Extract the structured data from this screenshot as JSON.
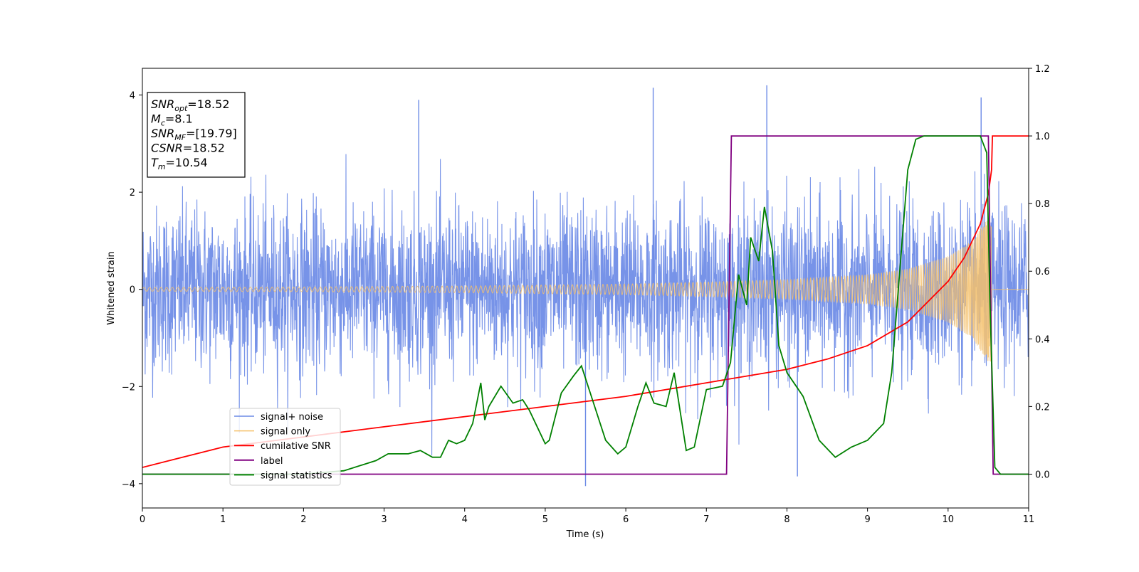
{
  "chart_data": {
    "type": "line",
    "xlabel": "Time (s)",
    "ylabel": "Whitened strain",
    "xlim": [
      0,
      11
    ],
    "ylim_left": [
      -4.5,
      4.55
    ],
    "ylim_right": [
      -0.1,
      1.2
    ],
    "x_ticks": [
      0,
      1,
      2,
      3,
      4,
      5,
      6,
      7,
      8,
      9,
      10,
      11
    ],
    "y_ticks_left": [
      -4,
      -2,
      0,
      2,
      4
    ],
    "y_ticks_right": [
      0.0,
      0.2,
      0.4,
      0.6,
      0.8,
      1.0,
      1.2
    ],
    "x_tick_labels": [
      "0",
      "1",
      "2",
      "3",
      "4",
      "5",
      "6",
      "7",
      "8",
      "9",
      "10",
      "11"
    ],
    "y_tick_labels_left": [
      "−4",
      "−2",
      "0",
      "2",
      "4"
    ],
    "y_tick_labels_right": [
      "0.0",
      "0.2",
      "0.4",
      "0.6",
      "0.8",
      "1.0",
      "1.2"
    ],
    "grid": false,
    "legend_position": "lower-left",
    "colors": {
      "signal_noise": "#6b8ae6",
      "signal_only": "#f5c16c",
      "cumulative_snr": "#ff0000",
      "label": "#800080",
      "signal_statistics": "#008000"
    },
    "series": [
      {
        "name": "signal+ noise",
        "axis": "left",
        "style": "noise band",
        "x_range": [
          0,
          11
        ],
        "approx_range": [
          -4.05,
          4.15
        ],
        "notable_peaks": [
          {
            "x": 3.43,
            "y": 3.9
          },
          {
            "x": 6.34,
            "y": 4.15
          },
          {
            "x": 7.75,
            "y": 4.2
          },
          {
            "x": 10.41,
            "y": 3.95
          },
          {
            "x": 5.5,
            "y": -4.05
          },
          {
            "x": 8.13,
            "y": -3.85
          }
        ]
      },
      {
        "name": "signal only",
        "axis": "left",
        "style": "chirp",
        "x_range": [
          0,
          10.54
        ],
        "amplitude": [
          [
            0,
            0.04
          ],
          [
            2,
            0.05
          ],
          [
            4,
            0.07
          ],
          [
            6,
            0.11
          ],
          [
            7,
            0.15
          ],
          [
            8,
            0.2
          ],
          [
            9,
            0.3
          ],
          [
            9.5,
            0.42
          ],
          [
            10,
            0.68
          ],
          [
            10.3,
            1.0
          ],
          [
            10.5,
            1.5
          ]
        ]
      },
      {
        "name": "cumilative SNR",
        "axis": "right",
        "x": [
          0,
          1,
          2,
          3,
          4,
          5,
          6,
          7,
          7.5,
          8,
          8.5,
          9,
          9.5,
          10,
          10.2,
          10.4,
          10.5,
          10.54,
          10.55,
          11
        ],
        "y": [
          0.02,
          0.08,
          0.11,
          0.14,
          0.17,
          0.2,
          0.23,
          0.27,
          0.29,
          0.31,
          0.34,
          0.38,
          0.45,
          0.57,
          0.64,
          0.74,
          0.83,
          0.9,
          1.0,
          1.0
        ]
      },
      {
        "name": "label",
        "axis": "right",
        "x": [
          0,
          7.25,
          7.31,
          10.5,
          10.56,
          11
        ],
        "y": [
          0,
          0,
          1.0,
          1.0,
          0,
          0
        ]
      },
      {
        "name": "signal statistics",
        "axis": "right",
        "x": [
          0,
          1,
          2,
          2.5,
          2.9,
          3.05,
          3.3,
          3.45,
          3.6,
          3.7,
          3.8,
          3.9,
          4.0,
          4.1,
          4.2,
          4.25,
          4.3,
          4.45,
          4.6,
          4.72,
          4.8,
          5.0,
          5.05,
          5.2,
          5.35,
          5.45,
          5.6,
          5.75,
          5.9,
          6.0,
          6.15,
          6.25,
          6.35,
          6.5,
          6.6,
          6.75,
          6.85,
          7.0,
          7.2,
          7.3,
          7.4,
          7.5,
          7.55,
          7.65,
          7.72,
          7.82,
          7.9,
          8.0,
          8.2,
          8.4,
          8.6,
          8.8,
          9.0,
          9.2,
          9.3,
          9.4,
          9.5,
          9.6,
          9.7,
          9.85,
          10.2,
          10.4,
          10.48,
          10.52,
          10.58,
          10.65,
          11
        ],
        "y": [
          0,
          0,
          0,
          0.01,
          0.04,
          0.06,
          0.06,
          0.07,
          0.05,
          0.05,
          0.1,
          0.09,
          0.1,
          0.15,
          0.27,
          0.16,
          0.2,
          0.26,
          0.21,
          0.22,
          0.19,
          0.09,
          0.1,
          0.24,
          0.29,
          0.32,
          0.21,
          0.1,
          0.06,
          0.08,
          0.2,
          0.27,
          0.21,
          0.2,
          0.3,
          0.07,
          0.08,
          0.25,
          0.26,
          0.33,
          0.59,
          0.5,
          0.7,
          0.63,
          0.79,
          0.66,
          0.38,
          0.3,
          0.23,
          0.1,
          0.05,
          0.08,
          0.1,
          0.15,
          0.3,
          0.6,
          0.9,
          0.99,
          1.0,
          1.0,
          1.0,
          1.0,
          0.95,
          0.5,
          0.02,
          0.0,
          0.0
        ]
      }
    ],
    "annotation": {
      "lines": [
        {
          "var": "SNR",
          "sub": "opt",
          "value": "=18.52"
        },
        {
          "var": "M",
          "sub": "c",
          "value": "=8.1"
        },
        {
          "var": "SNR",
          "sub": "MF",
          "value": "=[19.79]"
        },
        {
          "var": "CSNR",
          "sub": "",
          "value": "=18.52"
        },
        {
          "var": "T",
          "sub": "m",
          "value": "=10.54"
        }
      ]
    }
  }
}
